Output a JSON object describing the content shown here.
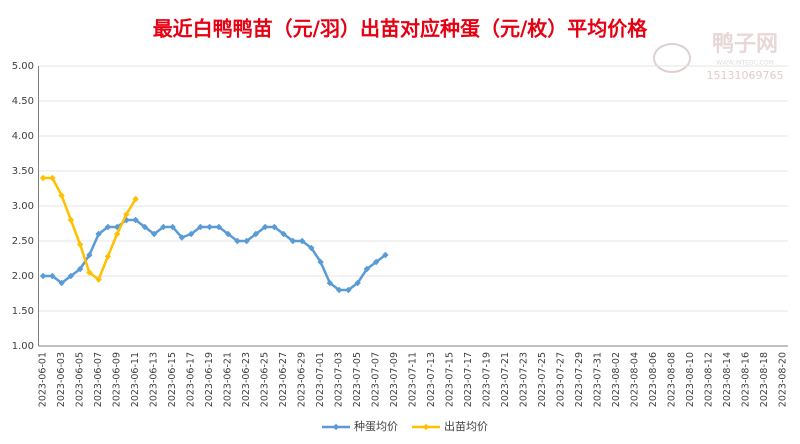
{
  "chart_data": {
    "type": "line",
    "title": "最近白鸭鸭苗（元/羽）出苗对应种蛋（元/枚）平均价格",
    "watermark": {
      "name": "鸭子网",
      "url": "WWW.INTEDC.COM",
      "phone": "15131069765"
    },
    "categories": [
      "2023-06-01",
      null,
      "2023-06-03",
      null,
      "2023-06-05",
      null,
      "2023-06-07",
      null,
      "2023-06-09",
      null,
      "2023-06-11",
      null,
      "2023-06-13",
      null,
      "2023-06-15",
      null,
      "2023-06-17",
      null,
      "2023-06-19",
      null,
      "2023-06-21",
      null,
      "2023-06-23",
      null,
      "2023-06-25",
      null,
      "2023-06-27",
      null,
      "2023-06-29",
      null,
      "2023-07-01",
      null,
      "2023-07-03",
      null,
      "2023-07-05",
      null,
      "2023-07-07",
      null,
      "2023-07-09",
      null,
      "2023-07-11",
      null,
      "2023-07-13",
      null,
      "2023-07-15",
      null,
      "2023-07-17",
      null,
      "2023-07-19",
      null,
      "2023-07-21",
      null,
      "2023-07-23",
      null,
      "2023-07-25",
      null,
      "2023-07-27",
      null,
      "2023-07-29",
      null,
      "2023-07-31",
      null,
      "2023-08-02",
      null,
      "2023-08-04",
      null,
      "2023-08-06",
      null,
      "2023-08-08",
      null,
      "2023-08-10",
      null,
      "2023-08-12",
      null,
      "2023-08-14",
      null,
      "2023-08-16",
      null,
      "2023-08-18",
      null,
      "2023-08-20"
    ],
    "series": [
      {
        "name": "种蛋均价",
        "color": "#5b9bd5",
        "values": [
          2.0,
          2.0,
          1.9,
          2.0,
          2.1,
          2.3,
          2.6,
          2.7,
          2.7,
          2.8,
          2.8,
          2.7,
          2.6,
          2.7,
          2.7,
          2.55,
          2.6,
          2.7,
          2.7,
          2.7,
          2.6,
          2.5,
          2.5,
          2.6,
          2.7,
          2.7,
          2.6,
          2.5,
          2.5,
          2.4,
          2.2,
          1.9,
          1.8,
          1.8,
          1.9,
          2.1,
          2.2,
          2.3,
          null,
          null,
          null,
          null,
          null,
          null,
          null,
          null,
          null,
          null,
          null,
          null,
          null,
          null,
          null,
          null,
          null,
          null,
          null,
          null,
          null,
          null,
          null,
          null,
          null,
          null,
          null,
          null,
          null,
          null,
          null,
          null,
          null,
          null,
          null,
          null,
          null,
          null,
          null,
          null,
          null,
          null,
          null
        ]
      },
      {
        "name": "出苗均价",
        "color": "#ffc000",
        "values": [
          3.4,
          3.4,
          3.15,
          2.8,
          2.45,
          2.05,
          1.95,
          2.28,
          2.6,
          2.88,
          3.1,
          null,
          null,
          null,
          null,
          null,
          null,
          null,
          null,
          null,
          null,
          null,
          null,
          null,
          null,
          null,
          null,
          null,
          null,
          null,
          null,
          null,
          null,
          null,
          null,
          null,
          null,
          null,
          null,
          null,
          null,
          null,
          null,
          null,
          null,
          null,
          null,
          null,
          null,
          null,
          null,
          null,
          null,
          null,
          null,
          null,
          null,
          null,
          null,
          null,
          null,
          null,
          null,
          null,
          null,
          null,
          null,
          null,
          null,
          null,
          null,
          null,
          null,
          null,
          null,
          null,
          null,
          null,
          null,
          null,
          null
        ]
      }
    ],
    "ylim": [
      1,
      5
    ],
    "yticks": [
      {
        "value": 1,
        "label": "1.00"
      },
      {
        "value": 1.5,
        "label": "1.50"
      },
      {
        "value": 2,
        "label": "2.00"
      },
      {
        "value": 2.5,
        "label": "2.50"
      },
      {
        "value": 3,
        "label": "3.00"
      },
      {
        "value": 3.5,
        "label": "3.50"
      },
      {
        "value": 4,
        "label": "4.00"
      },
      {
        "value": 4.5,
        "label": "4.50"
      },
      {
        "value": 5,
        "label": "5.00"
      }
    ],
    "grid": true,
    "legend": "bottom"
  }
}
